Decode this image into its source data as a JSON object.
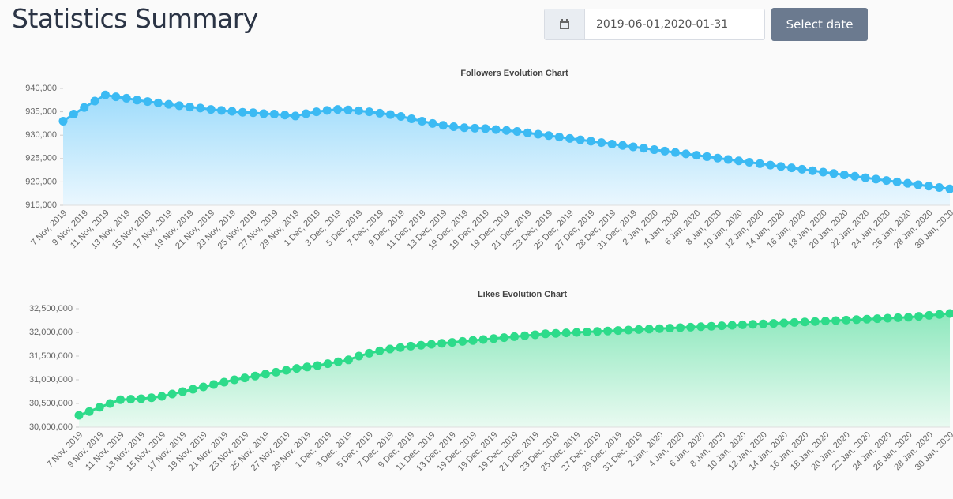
{
  "header": {
    "title": "Statistics Summary",
    "date_range": "2019-06-01,2020-01-31",
    "button": "Select date"
  },
  "chart_data": [
    {
      "type": "line",
      "title": "Followers Evolution Chart",
      "color": "#3bbaf3",
      "categories": [
        "7 Nov, 2019",
        null,
        "9 Nov, 2019",
        null,
        "11 Nov, 2019",
        null,
        "13 Nov, 2019",
        null,
        "15 Nov, 2019",
        null,
        "17 Nov, 2019",
        null,
        "19 Nov, 2019",
        null,
        "21 Nov, 2019",
        null,
        "23 Nov, 2019",
        null,
        "25 Nov, 2019",
        null,
        "27 Nov, 2019",
        null,
        "29 Nov, 2019",
        null,
        "1 Dec, 2019",
        null,
        "3 Dec, 2019",
        null,
        "5 Dec, 2019",
        null,
        "7 Dec, 2019",
        null,
        "9 Dec, 2019",
        null,
        "11 Dec, 2019",
        null,
        "13 Dec, 2019",
        null,
        "19 Dec, 2019",
        null,
        "19 Dec, 2019",
        null,
        "19 Dec, 2019",
        null,
        "21 Dec, 2019",
        null,
        "23 Dec, 2019",
        null,
        "25 Dec, 2019",
        null,
        "27 Dec, 2019",
        null,
        "28 Dec, 2019",
        null,
        "31 Dec, 2019",
        null,
        "2 Jan, 2020",
        null,
        "4 Jan, 2020",
        null,
        "6 Jan, 2020",
        null,
        "8 Jan, 2020",
        null,
        "10 Jan, 2020",
        null,
        "12 Jan, 2020",
        null,
        "14 Jan, 2020",
        null,
        "16 Jan, 2020",
        null,
        "18 Jan, 2020",
        null,
        "20 Jan, 2020",
        null,
        "22 Jan, 2020",
        null,
        "24 Jan, 2020",
        null,
        "26 Jan, 2020",
        null,
        "28 Jan, 2020",
        null,
        "30 Jan, 2020"
      ],
      "values": [
        933000,
        934500,
        935900,
        937300,
        938600,
        938200,
        937900,
        937500,
        937200,
        936900,
        936600,
        936300,
        936000,
        935800,
        935500,
        935300,
        935100,
        934900,
        934800,
        934600,
        934500,
        934300,
        934100,
        934600,
        935000,
        935300,
        935500,
        935400,
        935200,
        935000,
        934700,
        934400,
        934000,
        933500,
        933000,
        932500,
        932100,
        931800,
        931600,
        931500,
        931400,
        931200,
        931000,
        930800,
        930500,
        930200,
        929900,
        929600,
        929300,
        929000,
        928700,
        928400,
        928100,
        927800,
        927500,
        927200,
        926900,
        926600,
        926300,
        926000,
        925700,
        925400,
        925100,
        924800,
        924500,
        924200,
        923900,
        923600,
        923300,
        923000,
        922700,
        922400,
        922100,
        921800,
        921500,
        921200,
        920900,
        920600,
        920300,
        920000,
        919700,
        919400,
        919100,
        918800,
        918500
      ],
      "ylim": [
        915000,
        940000
      ],
      "yticks": [
        {
          "value": 915000,
          "label": "915,000"
        },
        {
          "value": 920000,
          "label": "920,000"
        },
        {
          "value": 925000,
          "label": "925,000"
        },
        {
          "value": 930000,
          "label": "930,000"
        },
        {
          "value": 935000,
          "label": "935,000"
        },
        {
          "value": 940000,
          "label": "940,000"
        }
      ]
    },
    {
      "type": "line",
      "title": "Likes Evolution Chart",
      "color": "#2ddb8a",
      "categories": [
        "7 Nov, 2019",
        null,
        "9 Nov, 2019",
        null,
        "11 Nov, 2019",
        null,
        "13 Nov, 2019",
        null,
        "15 Nov, 2019",
        null,
        "17 Nov, 2019",
        null,
        "19 Nov, 2019",
        null,
        "21 Nov, 2019",
        null,
        "23 Nov, 2019",
        null,
        "25 Nov, 2019",
        null,
        "27 Nov, 2019",
        null,
        "29 Nov, 2019",
        null,
        "1 Dec, 2019",
        null,
        "3 Dec, 2019",
        null,
        "5 Dec, 2019",
        null,
        "7 Dec, 2019",
        null,
        "9 Dec, 2019",
        null,
        "11 Dec, 2019",
        null,
        "13 Dec, 2019",
        null,
        "19 Dec, 2019",
        null,
        "19 Dec, 2019",
        null,
        "19 Dec, 2019",
        null,
        "21 Dec, 2019",
        null,
        "23 Dec, 2019",
        null,
        "25 Dec, 2019",
        null,
        "27 Dec, 2019",
        null,
        "29 Dec, 2019",
        null,
        "31 Dec, 2019",
        null,
        "2 Jan, 2020",
        null,
        "4 Jan, 2020",
        null,
        "6 Jan, 2020",
        null,
        "8 Jan, 2020",
        null,
        "10 Jan, 2020",
        null,
        "12 Jan, 2020",
        null,
        "14 Jan, 2020",
        null,
        "16 Jan, 2020",
        null,
        "18 Jan, 2020",
        null,
        "20 Jan, 2020",
        null,
        "22 Jan, 2020",
        null,
        "24 Jan, 2020",
        null,
        "26 Jan, 2020",
        null,
        "28 Jan, 2020",
        null,
        "30 Jan, 2020"
      ],
      "values": [
        30250000,
        30330000,
        30420000,
        30500000,
        30580000,
        30590000,
        30600000,
        30620000,
        30650000,
        30700000,
        30750000,
        30800000,
        30850000,
        30900000,
        30950000,
        31000000,
        31040000,
        31080000,
        31120000,
        31160000,
        31200000,
        31240000,
        31270000,
        31300000,
        31340000,
        31380000,
        31420000,
        31500000,
        31560000,
        31610000,
        31650000,
        31680000,
        31710000,
        31730000,
        31750000,
        31770000,
        31790000,
        31810000,
        31830000,
        31850000,
        31870000,
        31890000,
        31910000,
        31930000,
        31950000,
        31970000,
        31980000,
        31990000,
        32000000,
        32010000,
        32020000,
        32030000,
        32040000,
        32050000,
        32060000,
        32070000,
        32080000,
        32090000,
        32100000,
        32110000,
        32120000,
        32130000,
        32140000,
        32150000,
        32160000,
        32170000,
        32180000,
        32190000,
        32200000,
        32210000,
        32220000,
        32230000,
        32240000,
        32250000,
        32260000,
        32270000,
        32280000,
        32290000,
        32300000,
        32310000,
        32320000,
        32340000,
        32360000,
        32380000,
        32400000
      ],
      "ylim": [
        30000000,
        32500000
      ],
      "yticks": [
        {
          "value": 30000000,
          "label": "30,000,000"
        },
        {
          "value": 30500000,
          "label": "30,500,000"
        },
        {
          "value": 31000000,
          "label": "31,000,000"
        },
        {
          "value": 31500000,
          "label": "31,500,000"
        },
        {
          "value": 32000000,
          "label": "32,000,000"
        },
        {
          "value": 32500000,
          "label": "32,500,000"
        }
      ]
    }
  ]
}
